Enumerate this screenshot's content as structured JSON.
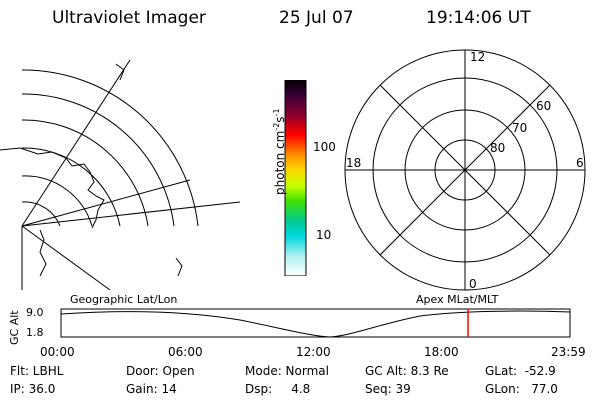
{
  "header": {
    "title": "Ultraviolet Imager",
    "date": "25 Jul 07",
    "time": "19:14:06 UT"
  },
  "colorbar": {
    "unit_main": "photon cm",
    "unit_sup1": "-2",
    "unit_mid": "s",
    "unit_sup2": "-1",
    "tick_100": "100",
    "tick_10": "10"
  },
  "polar_plot": {
    "mlt_labels": {
      "top": "12",
      "left": "18",
      "right": "6",
      "bottom": "0"
    },
    "lat_labels": {
      "outer": "60",
      "middle": "70",
      "inner": "80"
    }
  },
  "timeline": {
    "ylabel": "GC Alt",
    "ytick_top": "9.0",
    "ytick_bottom": "1.8",
    "left_label": "Geographic Lat/Lon",
    "right_label": "Apex MLat/MLT",
    "xticks": [
      "00:00",
      "06:00",
      "12:00",
      "18:00",
      "23:59"
    ]
  },
  "status": {
    "flt": "Flt: LBHL",
    "ip": "IP: 36.0",
    "door": "Door: Open",
    "gain": "Gain: 14",
    "mode": "Mode: Normal",
    "dsp": "Dsp:     4.8",
    "gcalt": "GC Alt: 8.3 Re",
    "seq": "Seq: 39",
    "glat": "GLat:  -52.9",
    "glon": "GLon:   77.0"
  },
  "colors": {
    "cursor": "#ff0000",
    "line": "#000000"
  }
}
